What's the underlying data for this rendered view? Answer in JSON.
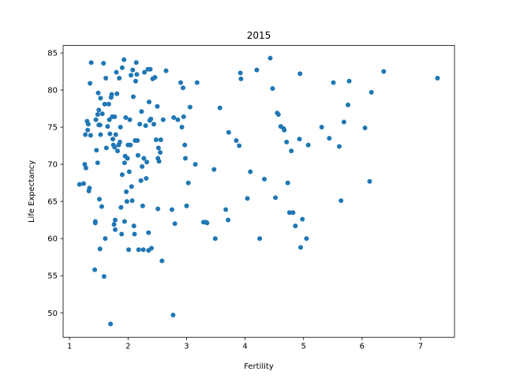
{
  "chart_data": {
    "type": "scatter",
    "title": "2015",
    "xlabel": "Fertility",
    "ylabel": "Life Expectancy",
    "xlim": [
      0.89,
      7.58
    ],
    "ylim": [
      46.7,
      86.0
    ],
    "xticks": [
      1,
      2,
      3,
      4,
      5,
      6,
      7
    ],
    "yticks": [
      50,
      55,
      60,
      65,
      70,
      75,
      80,
      85
    ],
    "grid": false,
    "legend": "none",
    "color": "#1f77b4",
    "points": [
      [
        1.17,
        67.3
      ],
      [
        1.24,
        67.4
      ],
      [
        1.26,
        70.0
      ],
      [
        1.27,
        74.0
      ],
      [
        1.28,
        69.5
      ],
      [
        1.3,
        75.8
      ],
      [
        1.31,
        74.6
      ],
      [
        1.32,
        75.4
      ],
      [
        1.33,
        66.4
      ],
      [
        1.34,
        66.8
      ],
      [
        1.35,
        80.9
      ],
      [
        1.36,
        73.9
      ],
      [
        1.37,
        83.7
      ],
      [
        1.43,
        55.8
      ],
      [
        1.44,
        62.3
      ],
      [
        1.44,
        62.1
      ],
      [
        1.45,
        76.0
      ],
      [
        1.46,
        71.9
      ],
      [
        1.48,
        70.2
      ],
      [
        1.48,
        76.7
      ],
      [
        1.49,
        79.6
      ],
      [
        1.5,
        75.3
      ],
      [
        1.5,
        77.3
      ],
      [
        1.51,
        65.3
      ],
      [
        1.52,
        75.3
      ],
      [
        1.52,
        58.6
      ],
      [
        1.53,
        74.0
      ],
      [
        1.53,
        78.9
      ],
      [
        1.55,
        64.3
      ],
      [
        1.56,
        76.8
      ],
      [
        1.58,
        83.6
      ],
      [
        1.59,
        54.9
      ],
      [
        1.6,
        78.1
      ],
      [
        1.61,
        60.0
      ],
      [
        1.62,
        81.6
      ],
      [
        1.63,
        72.2
      ],
      [
        1.65,
        75.1
      ],
      [
        1.67,
        78.1
      ],
      [
        1.68,
        76.0
      ],
      [
        1.69,
        74.1
      ],
      [
        1.7,
        48.5
      ],
      [
        1.71,
        79.0
      ],
      [
        1.72,
        79.4
      ],
      [
        1.73,
        76.4
      ],
      [
        1.74,
        73.4
      ],
      [
        1.75,
        72.6
      ],
      [
        1.76,
        61.9
      ],
      [
        1.77,
        72.3
      ],
      [
        1.77,
        76.4
      ],
      [
        1.78,
        62.5
      ],
      [
        1.78,
        61.2
      ],
      [
        1.79,
        74.0
      ],
      [
        1.8,
        82.4
      ],
      [
        1.81,
        79.5
      ],
      [
        1.82,
        71.8
      ],
      [
        1.84,
        72.6
      ],
      [
        1.85,
        81.6
      ],
      [
        1.86,
        73.0
      ],
      [
        1.87,
        75.0
      ],
      [
        1.88,
        64.2
      ],
      [
        1.89,
        60.6
      ],
      [
        1.9,
        83.0
      ],
      [
        1.9,
        68.6
      ],
      [
        1.93,
        84.1
      ],
      [
        1.94,
        70.2
      ],
      [
        1.94,
        62.3
      ],
      [
        1.95,
        71.1
      ],
      [
        1.96,
        76.3
      ],
      [
        1.97,
        66.3
      ],
      [
        1.98,
        65.0
      ],
      [
        1.99,
        70.8
      ],
      [
        2.0,
        72.6
      ],
      [
        2.01,
        58.5
      ],
      [
        2.02,
        69.0
      ],
      [
        2.03,
        76.0
      ],
      [
        2.04,
        72.6
      ],
      [
        2.05,
        82.0
      ],
      [
        2.06,
        67.0
      ],
      [
        2.07,
        65.1
      ],
      [
        2.08,
        82.7
      ],
      [
        2.09,
        79.1
      ],
      [
        2.1,
        61.7
      ],
      [
        2.11,
        60.6
      ],
      [
        2.12,
        73.2
      ],
      [
        2.13,
        81.2
      ],
      [
        2.14,
        83.7
      ],
      [
        2.15,
        82.1
      ],
      [
        2.16,
        73.2
      ],
      [
        2.17,
        71.2
      ],
      [
        2.18,
        58.5
      ],
      [
        2.2,
        75.4
      ],
      [
        2.22,
        67.8
      ],
      [
        2.23,
        77.1
      ],
      [
        2.24,
        69.7
      ],
      [
        2.25,
        64.4
      ],
      [
        2.26,
        58.5
      ],
      [
        2.27,
        70.8
      ],
      [
        2.28,
        82.4
      ],
      [
        2.3,
        75.2
      ],
      [
        2.31,
        68.1
      ],
      [
        2.32,
        70.3
      ],
      [
        2.34,
        82.8
      ],
      [
        2.35,
        58.4
      ],
      [
        2.35,
        60.8
      ],
      [
        2.36,
        78.4
      ],
      [
        2.37,
        75.9
      ],
      [
        2.38,
        82.8
      ],
      [
        2.39,
        76.1
      ],
      [
        2.4,
        58.7
      ],
      [
        2.42,
        81.5
      ],
      [
        2.44,
        75.4
      ],
      [
        2.46,
        81.7
      ],
      [
        2.48,
        73.3
      ],
      [
        2.5,
        77.8
      ],
      [
        2.51,
        70.8
      ],
      [
        2.51,
        64.0
      ],
      [
        2.52,
        72.2
      ],
      [
        2.53,
        70.4
      ],
      [
        2.55,
        71.6
      ],
      [
        2.56,
        73.3
      ],
      [
        2.58,
        57.0
      ],
      [
        2.6,
        76.0
      ],
      [
        2.65,
        82.6
      ],
      [
        2.75,
        63.9
      ],
      [
        2.77,
        49.7
      ],
      [
        2.78,
        76.3
      ],
      [
        2.8,
        62.0
      ],
      [
        2.85,
        76.0
      ],
      [
        2.9,
        81.0
      ],
      [
        2.92,
        75.0
      ],
      [
        2.94,
        80.3
      ],
      [
        2.95,
        76.4
      ],
      [
        2.97,
        72.6
      ],
      [
        2.98,
        70.8
      ],
      [
        3.0,
        64.4
      ],
      [
        3.03,
        67.5
      ],
      [
        3.06,
        77.7
      ],
      [
        3.15,
        70.0
      ],
      [
        3.18,
        81.0
      ],
      [
        3.29,
        62.2
      ],
      [
        3.33,
        62.2
      ],
      [
        3.35,
        62.1
      ],
      [
        3.47,
        69.3
      ],
      [
        3.49,
        60.0
      ],
      [
        3.57,
        77.6
      ],
      [
        3.67,
        63.9
      ],
      [
        3.71,
        62.5
      ],
      [
        3.72,
        74.3
      ],
      [
        3.85,
        73.2
      ],
      [
        3.9,
        72.5
      ],
      [
        3.92,
        82.3
      ],
      [
        3.93,
        81.5
      ],
      [
        4.04,
        65.4
      ],
      [
        4.09,
        69.0
      ],
      [
        4.2,
        82.7
      ],
      [
        4.25,
        60.0
      ],
      [
        4.33,
        68.0
      ],
      [
        4.43,
        84.3
      ],
      [
        4.47,
        80.2
      ],
      [
        4.52,
        65.5
      ],
      [
        4.55,
        76.9
      ],
      [
        4.57,
        76.7
      ],
      [
        4.61,
        75.1
      ],
      [
        4.66,
        74.8
      ],
      [
        4.67,
        74.6
      ],
      [
        4.71,
        73.0
      ],
      [
        4.73,
        67.5
      ],
      [
        4.76,
        63.5
      ],
      [
        4.79,
        71.8
      ],
      [
        4.82,
        63.5
      ],
      [
        4.86,
        61.7
      ],
      [
        4.93,
        73.4
      ],
      [
        4.94,
        82.2
      ],
      [
        4.95,
        58.8
      ],
      [
        4.98,
        62.6
      ],
      [
        5.05,
        60.0
      ],
      [
        5.08,
        72.6
      ],
      [
        5.31,
        75.0
      ],
      [
        5.44,
        73.5
      ],
      [
        5.51,
        81.0
      ],
      [
        5.61,
        72.4
      ],
      [
        5.64,
        65.1
      ],
      [
        5.69,
        75.7
      ],
      [
        5.76,
        78.0
      ],
      [
        5.78,
        81.2
      ],
      [
        6.05,
        74.9
      ],
      [
        6.13,
        67.7
      ],
      [
        6.16,
        79.7
      ],
      [
        6.37,
        82.5
      ],
      [
        7.29,
        81.6
      ]
    ]
  }
}
